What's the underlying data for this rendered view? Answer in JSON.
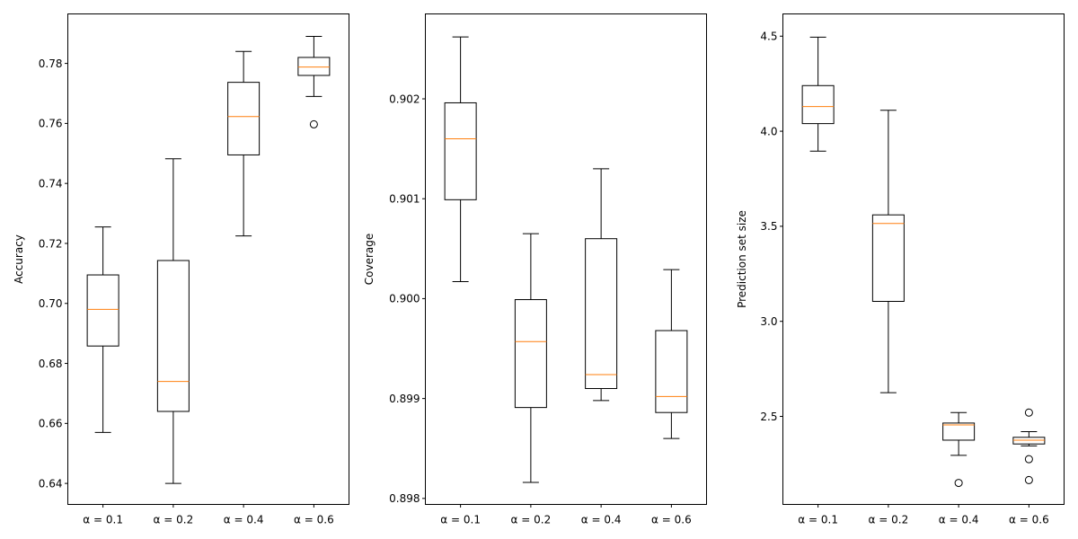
{
  "chart_data": [
    {
      "type": "box",
      "ylabel": "Accuracy",
      "ylim": [
        0.633,
        0.7965
      ],
      "yticks": [
        0.64,
        0.66,
        0.68,
        0.7,
        0.72,
        0.74,
        0.76,
        0.78
      ],
      "ytick_labels": [
        "0.64",
        "0.66",
        "0.68",
        "0.70",
        "0.72",
        "0.74",
        "0.76",
        "0.78"
      ],
      "categories": [
        "α = 0.1",
        "α = 0.2",
        "α = 0.4",
        "α = 0.6"
      ],
      "boxes": [
        {
          "whislo": 0.657,
          "q1": 0.6858,
          "med": 0.698,
          "q3": 0.7095,
          "whishi": 0.7255,
          "fliers": []
        },
        {
          "whislo": 0.64,
          "q1": 0.664,
          "med": 0.674,
          "q3": 0.7143,
          "whishi": 0.7482,
          "fliers": []
        },
        {
          "whislo": 0.7225,
          "q1": 0.7495,
          "med": 0.7623,
          "q3": 0.7737,
          "whishi": 0.784,
          "fliers": []
        },
        {
          "whislo": 0.769,
          "q1": 0.776,
          "med": 0.7788,
          "q3": 0.782,
          "whishi": 0.789,
          "fliers": [
            0.7597
          ]
        }
      ]
    },
    {
      "type": "box",
      "ylabel": "Coverage",
      "ylim": [
        0.89794,
        0.90285
      ],
      "yticks": [
        0.898,
        0.899,
        0.9,
        0.901,
        0.902
      ],
      "ytick_labels": [
        "0.898",
        "0.899",
        "0.900",
        "0.901",
        "0.902"
      ],
      "categories": [
        "α = 0.1",
        "α = 0.2",
        "α = 0.4",
        "α = 0.6"
      ],
      "boxes": [
        {
          "whislo": 0.90017,
          "q1": 0.90099,
          "med": 0.9016,
          "q3": 0.90196,
          "whishi": 0.90262,
          "fliers": []
        },
        {
          "whislo": 0.89816,
          "q1": 0.89891,
          "med": 0.89957,
          "q3": 0.89999,
          "whishi": 0.90065,
          "fliers": []
        },
        {
          "whislo": 0.89898,
          "q1": 0.8991,
          "med": 0.89924,
          "q3": 0.9006,
          "whishi": 0.9013,
          "fliers": []
        },
        {
          "whislo": 0.8986,
          "q1": 0.89886,
          "med": 0.89902,
          "q3": 0.89968,
          "whishi": 0.90029,
          "fliers": []
        }
      ]
    },
    {
      "type": "box",
      "ylabel": "Prediction set size",
      "ylim": [
        2.037,
        4.617
      ],
      "yticks": [
        2.5,
        3.0,
        3.5,
        4.0,
        4.5
      ],
      "ytick_labels": [
        "2.5",
        "3.0",
        "3.5",
        "4.0",
        "4.5"
      ],
      "categories": [
        "α = 0.1",
        "α = 0.2",
        "α = 0.4",
        "α = 0.6"
      ],
      "boxes": [
        {
          "whislo": 3.895,
          "q1": 4.04,
          "med": 4.13,
          "q3": 4.24,
          "whishi": 4.495,
          "fliers": []
        },
        {
          "whislo": 2.625,
          "q1": 3.105,
          "med": 3.515,
          "q3": 3.56,
          "whishi": 4.11,
          "fliers": []
        },
        {
          "whislo": 2.295,
          "q1": 2.375,
          "med": 2.455,
          "q3": 2.465,
          "whishi": 2.52,
          "fliers": [
            2.15
          ]
        },
        {
          "whislo": 2.345,
          "q1": 2.355,
          "med": 2.375,
          "q3": 2.39,
          "whishi": 2.42,
          "fliers": [
            2.52,
            2.275,
            2.165
          ]
        }
      ]
    }
  ]
}
